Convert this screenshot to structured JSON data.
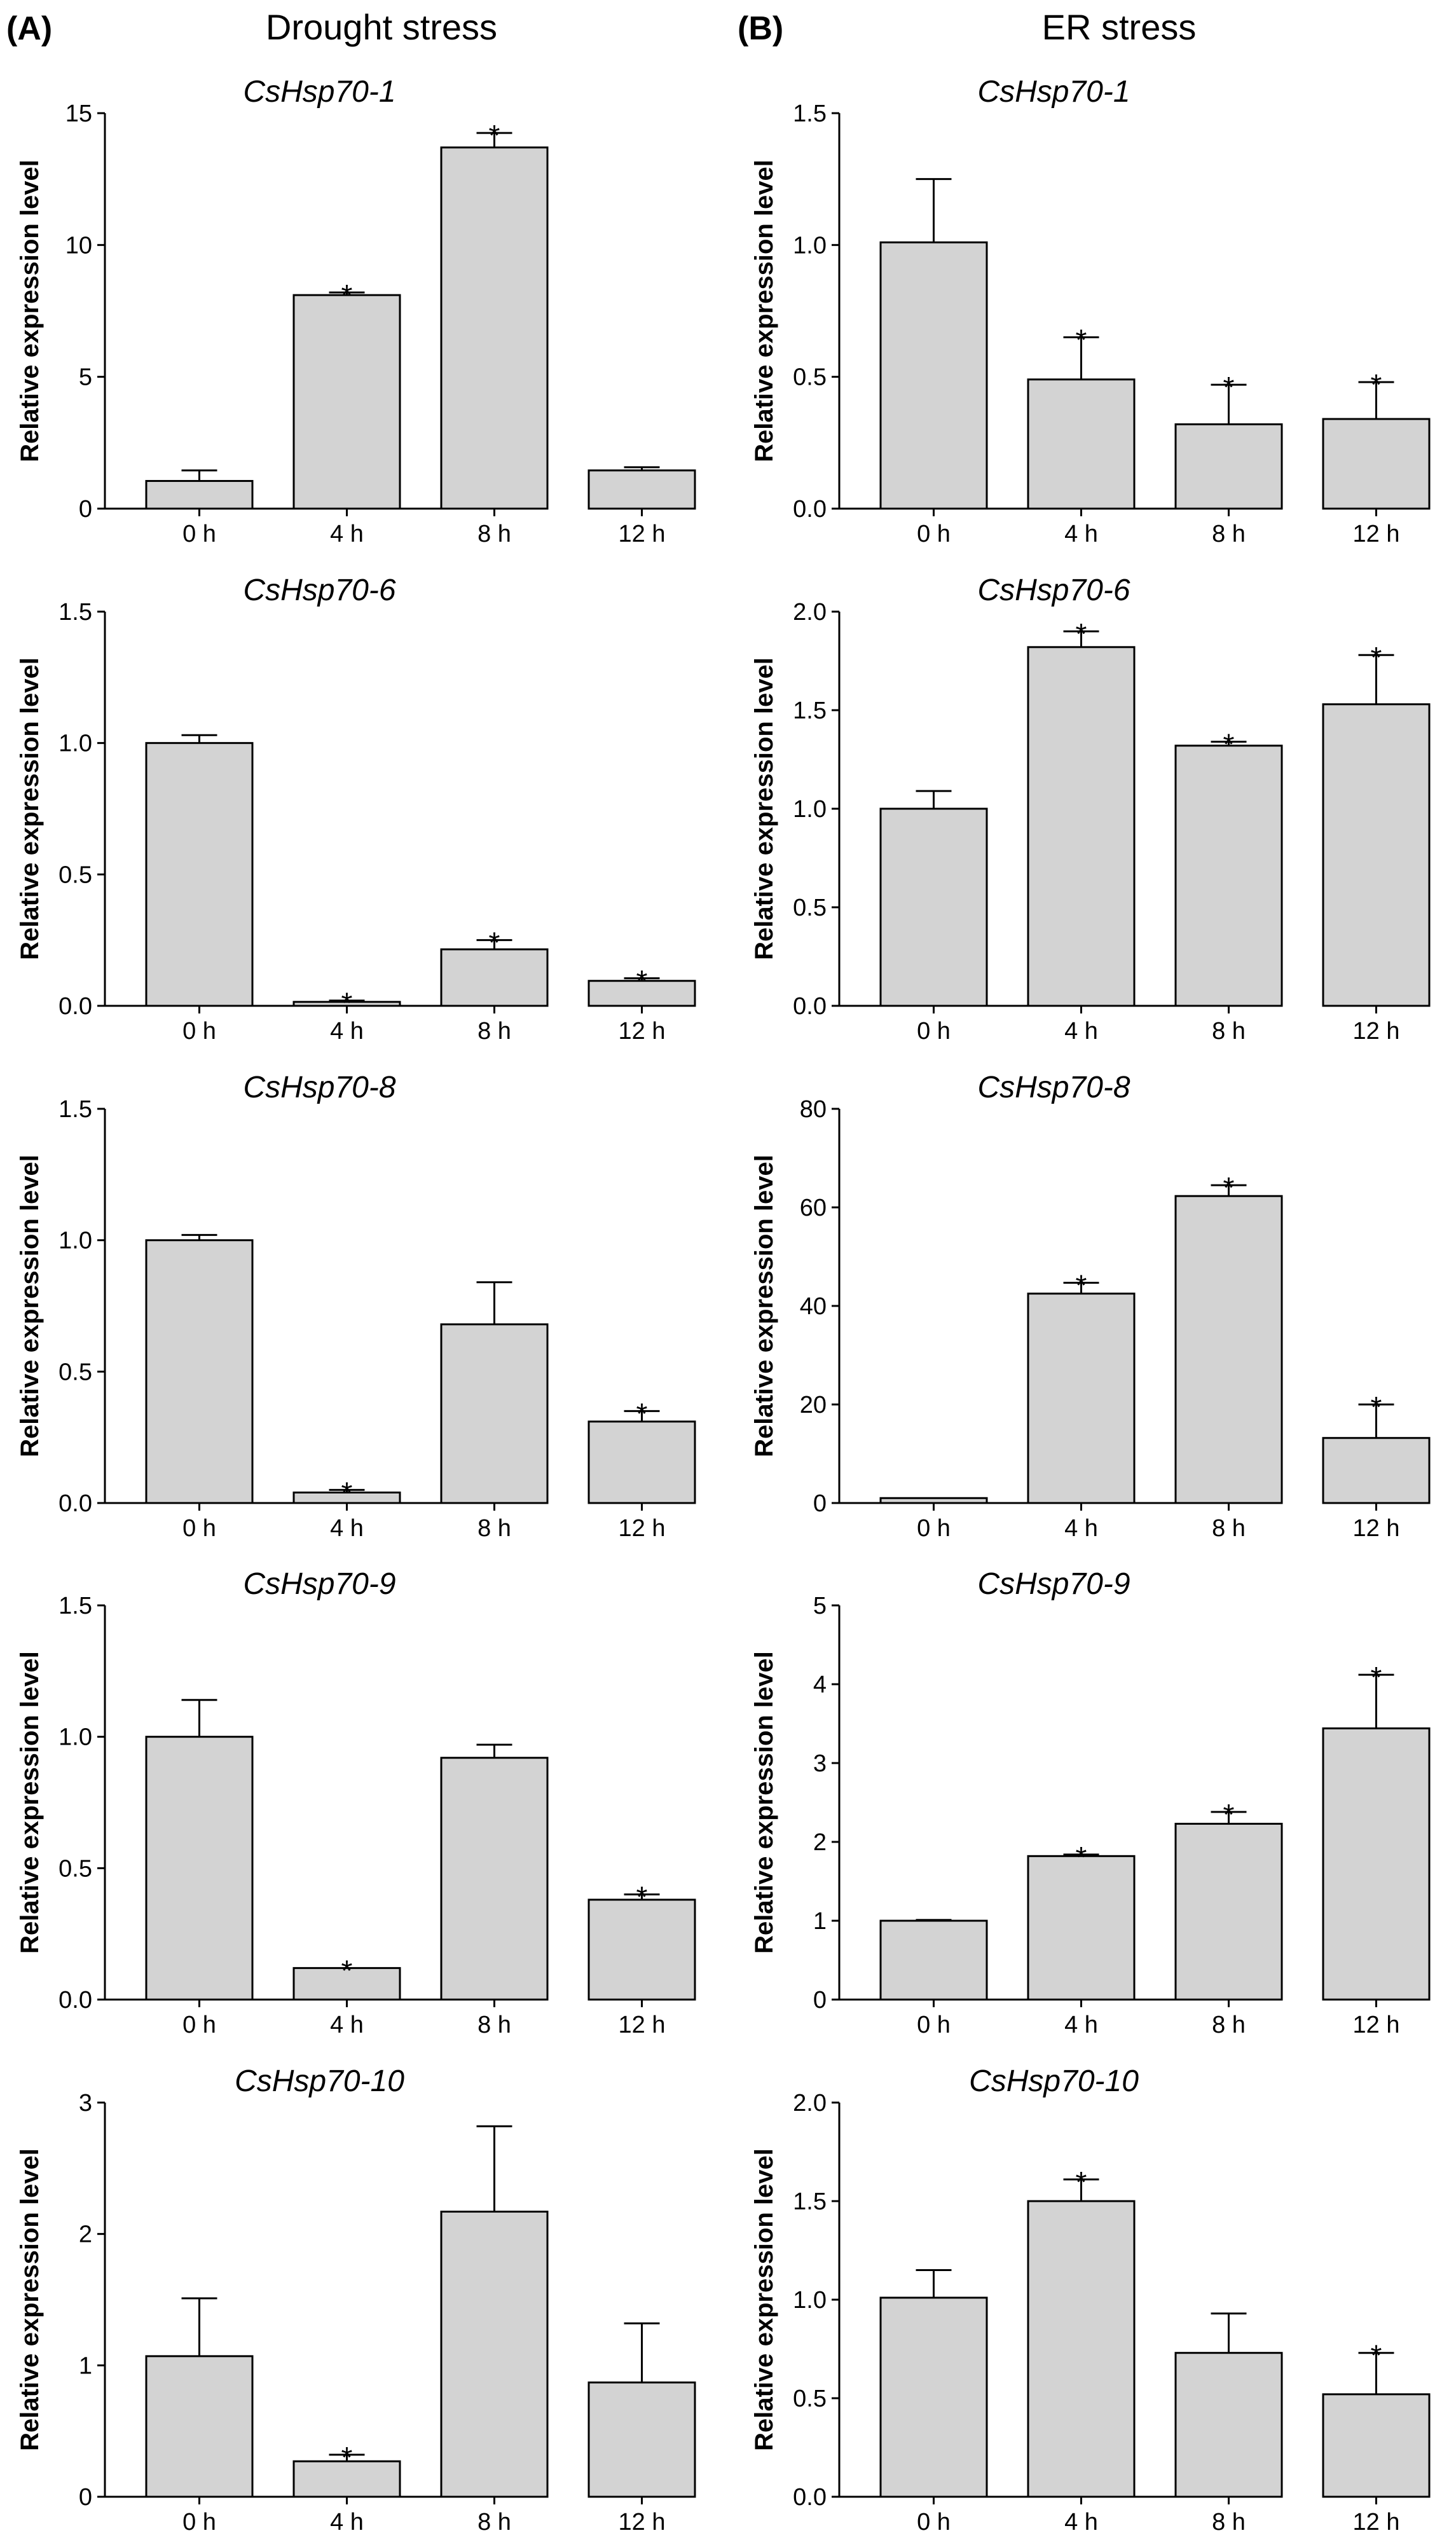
{
  "figure": {
    "left_panel_label": "(A)",
    "right_panel_label": "(B)",
    "left_column_title": "Drought stress",
    "right_column_title": "ER stress"
  },
  "chart_data": [
    {
      "type": "bar",
      "title": "CsHsp70-1",
      "condition": "Drought stress",
      "categories": [
        "0 h",
        "4 h",
        "8 h",
        "12 h"
      ],
      "values": [
        1.05,
        8.1,
        13.7,
        1.45
      ],
      "errors": [
        0.4,
        0.1,
        0.55,
        0.12
      ],
      "significant": [
        false,
        true,
        true,
        false
      ],
      "ylim": [
        0,
        15
      ],
      "yticks": [
        0,
        5,
        10,
        15
      ],
      "ytick_labels": [
        "0",
        "5",
        "10",
        "15"
      ],
      "xlabel": "",
      "ylabel": "Relative expression level",
      "bar_color": "#d3d3d3"
    },
    {
      "type": "bar",
      "title": "CsHsp70-1",
      "condition": "ER stress",
      "categories": [
        "0 h",
        "4 h",
        "8 h",
        "12 h"
      ],
      "values": [
        1.01,
        0.49,
        0.32,
        0.34
      ],
      "errors": [
        0.24,
        0.16,
        0.15,
        0.14
      ],
      "significant": [
        false,
        true,
        true,
        true
      ],
      "ylim": [
        0,
        1.5
      ],
      "yticks": [
        0,
        0.5,
        1.0,
        1.5
      ],
      "ytick_labels": [
        "0.0",
        "0.5",
        "1.0",
        "1.5"
      ],
      "xlabel": "",
      "ylabel": "Relative expression level",
      "bar_color": "#d3d3d3"
    },
    {
      "type": "bar",
      "title": "CsHsp70-6",
      "condition": "Drought stress",
      "categories": [
        "0 h",
        "4 h",
        "8 h",
        "12 h"
      ],
      "values": [
        1.0,
        0.015,
        0.215,
        0.095
      ],
      "errors": [
        0.03,
        0.005,
        0.035,
        0.01
      ],
      "significant": [
        false,
        true,
        true,
        true
      ],
      "ylim": [
        0,
        1.5
      ],
      "yticks": [
        0,
        0.5,
        1.0,
        1.5
      ],
      "ytick_labels": [
        "0.0",
        "0.5",
        "1.0",
        "1.5"
      ],
      "xlabel": "",
      "ylabel": "Relative expression level",
      "bar_color": "#d3d3d3"
    },
    {
      "type": "bar",
      "title": "CsHsp70-6",
      "condition": "ER stress",
      "categories": [
        "0 h",
        "4 h",
        "8 h",
        "12 h"
      ],
      "values": [
        1.0,
        1.82,
        1.32,
        1.53
      ],
      "errors": [
        0.09,
        0.08,
        0.02,
        0.25
      ],
      "significant": [
        false,
        true,
        true,
        true
      ],
      "ylim": [
        0,
        2.0
      ],
      "yticks": [
        0,
        0.5,
        1.0,
        1.5,
        2.0
      ],
      "ytick_labels": [
        "0.0",
        "0.5",
        "1.0",
        "1.5",
        "2.0"
      ],
      "xlabel": "",
      "ylabel": "Relative expression level",
      "bar_color": "#d3d3d3"
    },
    {
      "type": "bar",
      "title": "CsHsp70-8",
      "condition": "Drought stress",
      "categories": [
        "0 h",
        "4 h",
        "8 h",
        "12 h"
      ],
      "values": [
        1.0,
        0.04,
        0.68,
        0.31
      ],
      "errors": [
        0.02,
        0.01,
        0.16,
        0.04
      ],
      "significant": [
        false,
        true,
        false,
        true
      ],
      "ylim": [
        0,
        1.5
      ],
      "yticks": [
        0,
        0.5,
        1.0,
        1.5
      ],
      "ytick_labels": [
        "0.0",
        "0.5",
        "1.0",
        "1.5"
      ],
      "xlabel": "",
      "ylabel": "Relative expression level",
      "bar_color": "#d3d3d3"
    },
    {
      "type": "bar",
      "title": "CsHsp70-8",
      "condition": "ER stress",
      "categories": [
        "0 h",
        "4 h",
        "8 h",
        "12 h"
      ],
      "values": [
        1.0,
        42.5,
        62.3,
        13.2
      ],
      "errors": [
        0.1,
        2.2,
        2.2,
        6.8
      ],
      "significant": [
        false,
        true,
        true,
        true
      ],
      "ylim": [
        0,
        80
      ],
      "yticks": [
        0,
        20,
        40,
        60,
        80
      ],
      "ytick_labels": [
        "0",
        "20",
        "40",
        "60",
        "80"
      ],
      "xlabel": "",
      "ylabel": "Relative expression level",
      "bar_color": "#d3d3d3"
    },
    {
      "type": "bar",
      "title": "CsHsp70-9",
      "condition": "Drought stress",
      "categories": [
        "0 h",
        "4 h",
        "8 h",
        "12 h"
      ],
      "values": [
        1.0,
        0.12,
        0.92,
        0.38
      ],
      "errors": [
        0.14,
        0.0,
        0.05,
        0.02
      ],
      "significant": [
        false,
        true,
        false,
        true
      ],
      "ylim": [
        0,
        1.5
      ],
      "yticks": [
        0,
        0.5,
        1.0,
        1.5
      ],
      "ytick_labels": [
        "0.0",
        "0.5",
        "1.0",
        "1.5"
      ],
      "xlabel": "",
      "ylabel": "Relative expression level",
      "bar_color": "#d3d3d3"
    },
    {
      "type": "bar",
      "title": "CsHsp70-9",
      "condition": "ER stress",
      "categories": [
        "0 h",
        "4 h",
        "8 h",
        "12 h"
      ],
      "values": [
        1.0,
        1.82,
        2.23,
        3.44
      ],
      "errors": [
        0.01,
        0.02,
        0.15,
        0.68
      ],
      "significant": [
        false,
        true,
        true,
        true
      ],
      "ylim": [
        0,
        5
      ],
      "yticks": [
        0,
        1,
        2,
        3,
        4,
        5
      ],
      "ytick_labels": [
        "0",
        "1",
        "2",
        "3",
        "4",
        "5"
      ],
      "xlabel": "",
      "ylabel": "Relative expression level",
      "bar_color": "#d3d3d3"
    },
    {
      "type": "bar",
      "title": "CsHsp70-10",
      "condition": "Drought stress",
      "categories": [
        "0 h",
        "4 h",
        "8 h",
        "12 h"
      ],
      "values": [
        1.07,
        0.27,
        2.17,
        0.87
      ],
      "errors": [
        0.44,
        0.05,
        0.65,
        0.45
      ],
      "significant": [
        false,
        true,
        false,
        false
      ],
      "ylim": [
        0,
        3
      ],
      "yticks": [
        0,
        1,
        2,
        3
      ],
      "ytick_labels": [
        "0",
        "1",
        "2",
        "3"
      ],
      "xlabel": "",
      "ylabel": "Relative expression level",
      "bar_color": "#d3d3d3"
    },
    {
      "type": "bar",
      "title": "CsHsp70-10",
      "condition": "ER stress",
      "categories": [
        "0 h",
        "4 h",
        "8 h",
        "12 h"
      ],
      "values": [
        1.01,
        1.5,
        0.73,
        0.52
      ],
      "errors": [
        0.14,
        0.11,
        0.2,
        0.21
      ],
      "significant": [
        false,
        true,
        false,
        true
      ],
      "ylim": [
        0,
        2.0
      ],
      "yticks": [
        0,
        0.5,
        1.0,
        1.5,
        2.0
      ],
      "ytick_labels": [
        "0.0",
        "0.5",
        "1.0",
        "1.5",
        "2.0"
      ],
      "xlabel": "",
      "ylabel": "Relative expression level",
      "bar_color": "#d3d3d3"
    }
  ]
}
